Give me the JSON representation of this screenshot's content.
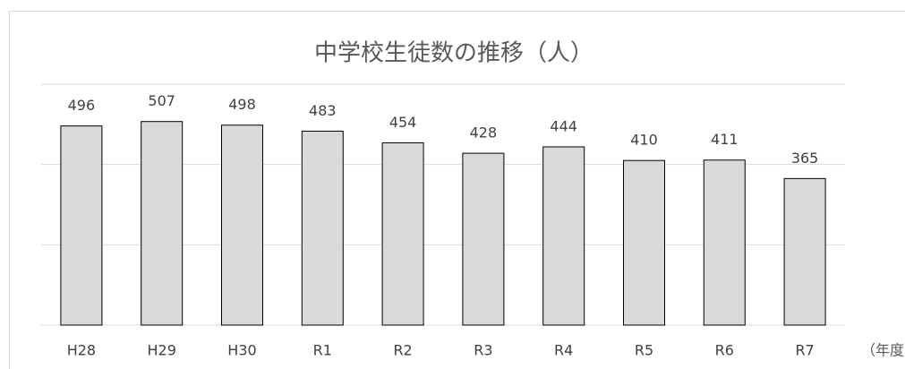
{
  "chart_data": {
    "type": "bar",
    "title": "中学校生徒数の推移（人）",
    "categories": [
      "H28",
      "H29",
      "H30",
      "R1",
      "R2",
      "R3",
      "R4",
      "R5",
      "R6",
      "R7"
    ],
    "values": [
      496,
      507,
      498,
      483,
      454,
      428,
      444,
      410,
      411,
      365
    ],
    "x_label": "（年度）",
    "color": "#d9d9d9",
    "edge_color": "#000000",
    "ylim": [
      0,
      600
    ],
    "yticks": [
      0,
      200,
      400,
      600
    ],
    "grid": true
  }
}
